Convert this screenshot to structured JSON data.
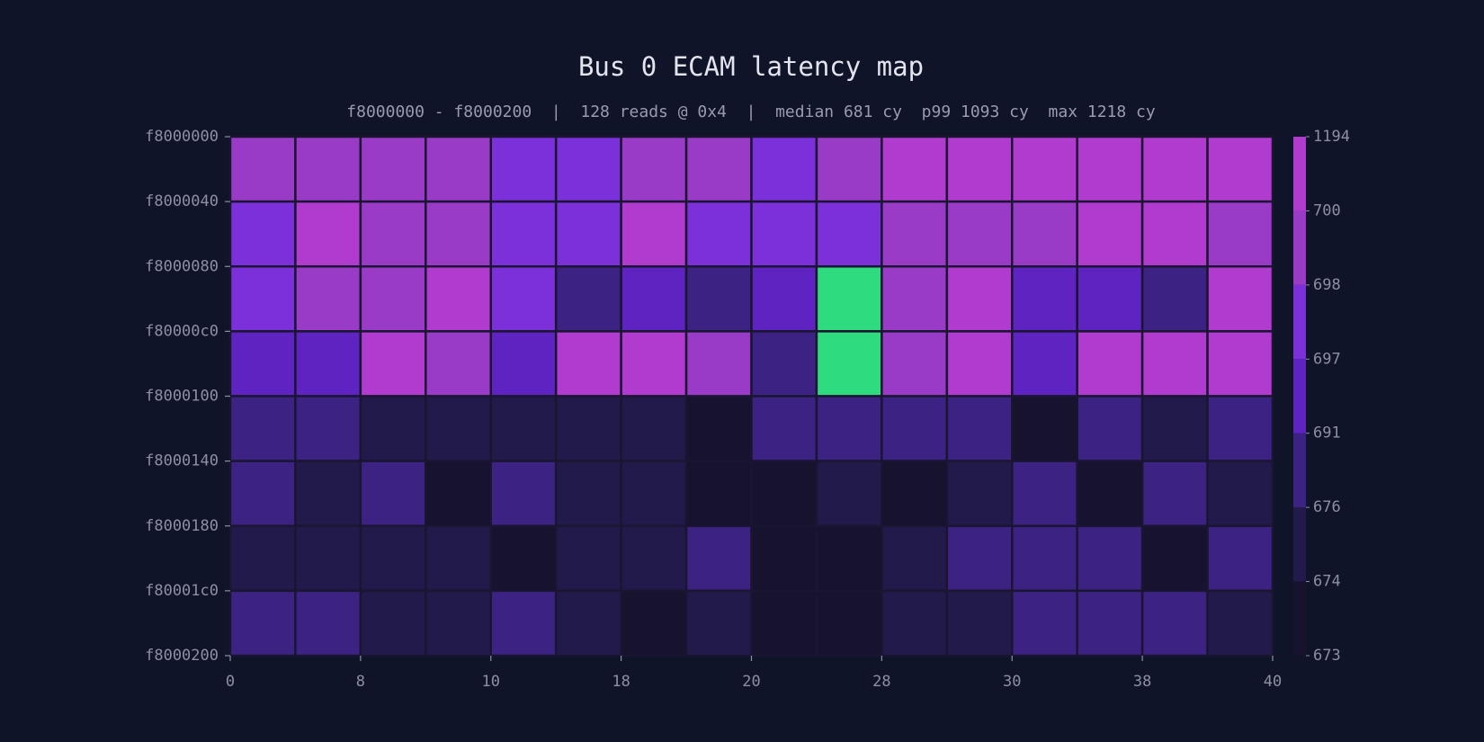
{
  "chart_data": {
    "type": "heatmap",
    "title": "Bus 0 ECAM latency map",
    "subtitle": "f8000000 - f8000200  |  128 reads @ 0x4  |  median 681 cy  p99 1093 cy  max 1218 cy",
    "xlim": [
      0,
      64
    ],
    "ylim": [
      0,
      512
    ],
    "xticks": [
      0,
      8,
      {
        "value": 16,
        "label": "10"
      },
      {
        "value": 24,
        "label": "18"
      },
      {
        "value": 32,
        "label": "20"
      },
      {
        "value": 40,
        "label": "28"
      },
      {
        "value": 48,
        "label": "30"
      },
      {
        "value": 56,
        "label": "38"
      },
      {
        "value": 64,
        "label": "40"
      }
    ],
    "yticks": [
      {
        "value": 0,
        "label": "f8000000"
      },
      {
        "value": 64,
        "label": "f8000040"
      },
      {
        "value": 128,
        "label": "f8000080"
      },
      {
        "value": 192,
        "label": "f80000c0"
      },
      {
        "value": 256,
        "label": "f8000100"
      },
      {
        "value": 320,
        "label": "f8000140"
      },
      {
        "value": 384,
        "label": "f8000180"
      },
      {
        "value": 448,
        "label": "f80001c0"
      },
      {
        "value": 512,
        "label": "f8000200"
      }
    ],
    "z": [
      [
        699,
        699,
        699,
        699.5,
        697.5,
        697.5,
        699,
        699,
        697.5,
        699,
        760,
        780,
        750,
        770,
        740,
        790
      ],
      [
        697.5,
        820,
        699,
        699.5,
        697.5,
        697.5,
        800,
        697.5,
        697.5,
        697.5,
        699,
        699,
        699,
        760,
        780,
        699
      ],
      [
        697.5,
        699,
        699,
        810,
        697.5,
        684,
        694,
        684,
        694,
        1218,
        699,
        790,
        694,
        694,
        684,
        800
      ],
      [
        694,
        694,
        830,
        699,
        694,
        780,
        770,
        699,
        684,
        1203,
        699,
        790,
        694,
        770,
        760,
        780
      ],
      [
        684,
        684,
        675,
        675,
        675,
        675,
        675,
        673.5,
        684,
        684,
        684,
        684,
        673.5,
        684,
        675,
        684
      ],
      [
        684,
        675,
        686,
        673.5,
        686,
        675,
        675,
        673.5,
        673.3,
        675,
        673.5,
        675,
        686,
        673.5,
        686,
        675
      ],
      [
        675,
        675,
        675,
        675,
        673.5,
        675,
        675,
        686,
        673.3,
        673.3,
        675,
        686,
        686,
        686,
        673.5,
        686
      ],
      [
        684,
        686,
        675,
        675,
        686,
        675,
        673.5,
        675,
        673.3,
        673.3,
        675,
        675,
        686,
        686,
        686,
        675
      ]
    ],
    "colorbar": {
      "levels": [
        673,
        674,
        676,
        691,
        697,
        698,
        700,
        1194
      ],
      "colors": [
        "#17132f",
        "#221a4a",
        "#3b2283",
        "#5e23c0",
        "#7c30d9",
        "#993bc7",
        "#b13acf"
      ],
      "over_color": "#2edb7e"
    }
  }
}
